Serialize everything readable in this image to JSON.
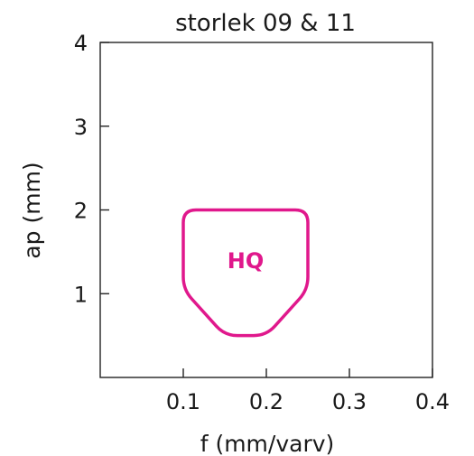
{
  "chart_data": {
    "type": "area",
    "title": "storlek 09 & 11",
    "xlabel": "f (mm/varv)",
    "ylabel": "ap (mm)",
    "xlim": [
      0,
      0.4
    ],
    "ylim": [
      0,
      4
    ],
    "x_ticks": [
      0.1,
      0.2,
      0.3,
      0.4
    ],
    "x_tick_labels": [
      "0.1",
      "0.2",
      "0.3",
      "0.4"
    ],
    "y_ticks": [
      1,
      2,
      3,
      4
    ],
    "y_tick_labels": [
      "1",
      "2",
      "3",
      "4"
    ],
    "grid": false,
    "regions": [
      {
        "label": "HQ",
        "color": "#e0188c",
        "polygon": [
          [
            0.1,
            2.0
          ],
          [
            0.25,
            2.0
          ],
          [
            0.25,
            1.05
          ],
          [
            0.2,
            0.5
          ],
          [
            0.15,
            0.5
          ],
          [
            0.1,
            1.05
          ]
        ],
        "label_position": [
          0.175,
          1.4
        ]
      }
    ]
  }
}
